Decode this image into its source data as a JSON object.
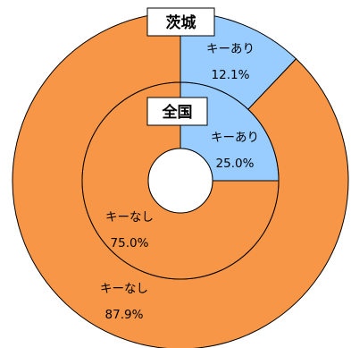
{
  "chart_data": {
    "type": "pie",
    "variant": "nested-donut",
    "title": "",
    "categories": [
      "キーあり",
      "キーなし"
    ],
    "colors": {
      "キーあり": "#99ccff",
      "キーなし": "#f79646",
      "stroke": "#000000"
    },
    "series": [
      {
        "name": "茨城",
        "ring": "outer",
        "values": [
          12.1,
          87.9
        ],
        "value_labels": [
          "12.1%",
          "87.9%"
        ]
      },
      {
        "name": "全国",
        "ring": "inner",
        "values": [
          25.0,
          75.0
        ],
        "value_labels": [
          "25.0%",
          "75.0%"
        ]
      }
    ],
    "start": "top",
    "direction": "clockwise",
    "legend": "none"
  }
}
